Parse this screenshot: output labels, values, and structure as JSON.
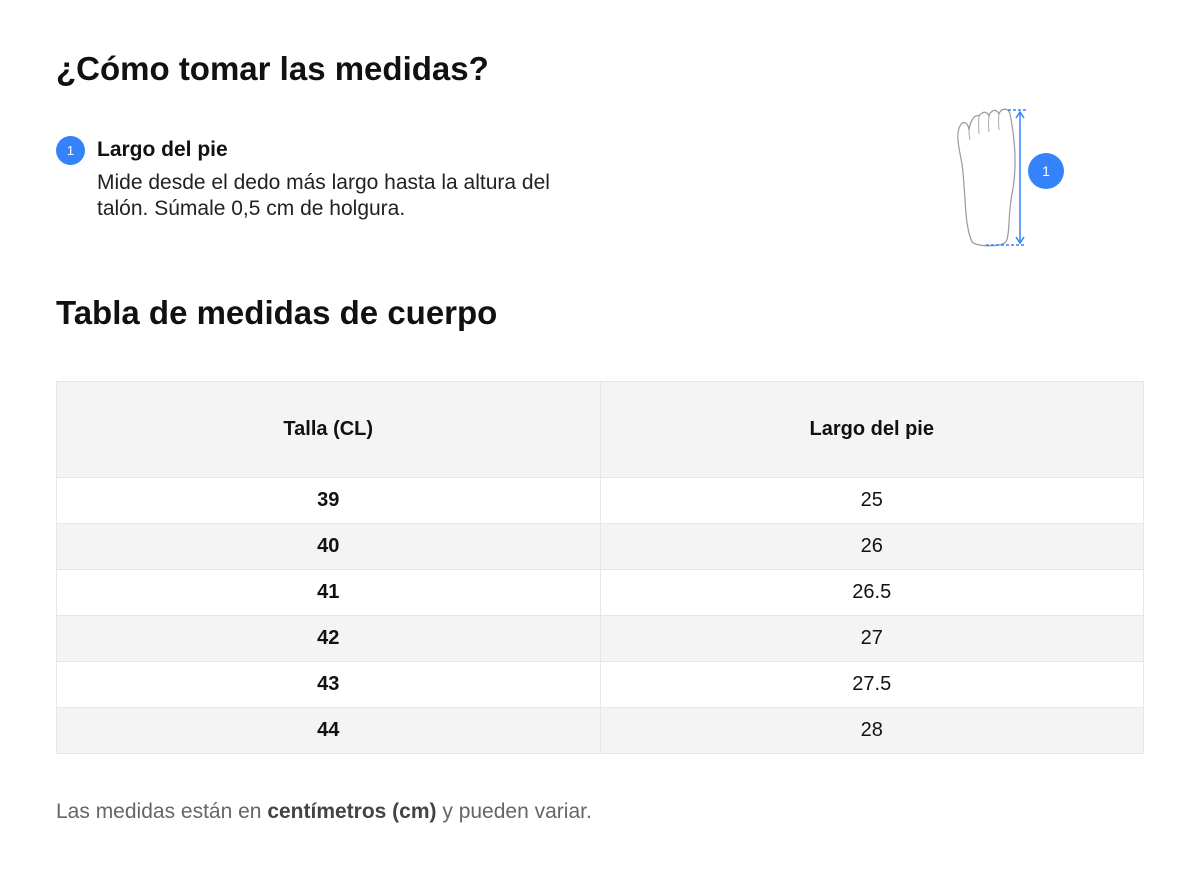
{
  "measure_section": {
    "title": "¿Cómo tomar las medidas?",
    "steps": [
      {
        "number": "1",
        "title": "Largo del pie",
        "description": "Mide desde el dedo más largo hasta la altura del talón. Súmale 0,5 cm de holgura."
      }
    ],
    "illustration": {
      "icon": "foot-length-icon",
      "marker": "1",
      "accent": "#3483fa"
    }
  },
  "table_section": {
    "title": "Tabla de medidas de cuerpo",
    "headers": [
      "Talla (CL)",
      "Largo del pie"
    ],
    "rows": [
      [
        "39",
        "25"
      ],
      [
        "40",
        "26"
      ],
      [
        "41",
        "26.5"
      ],
      [
        "42",
        "27"
      ],
      [
        "43",
        "27.5"
      ],
      [
        "44",
        "28"
      ]
    ]
  },
  "note": {
    "prefix": "Las medidas están en ",
    "bold": "centímetros (cm)",
    "suffix": " y pueden variar."
  }
}
